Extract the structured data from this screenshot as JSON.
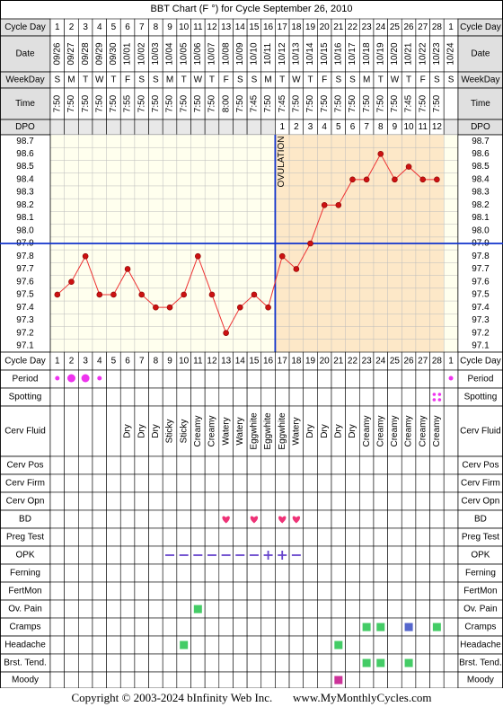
{
  "title": "BBT Chart (F °) for Cycle September 26, 2010",
  "row_labels": {
    "cycle_day": "Cycle Day",
    "date": "Date",
    "weekday": "WeekDay",
    "time": "Time",
    "dpo": "DPO",
    "period": "Period",
    "spotting": "Spotting",
    "cerv_fluid": "Cerv Fluid",
    "cerv_pos": "Cerv Pos",
    "cerv_firm": "Cerv Firm",
    "cerv_opn": "Cerv Opn",
    "bd": "BD",
    "preg_test": "Preg Test",
    "opk": "OPK",
    "ferning": "Ferning",
    "fertmon": "FertMon",
    "ov_pain": "Ov. Pain",
    "cramps": "Cramps",
    "headache": "Headache",
    "brst_tend": "Brst. Tend.",
    "moody": "Moody"
  },
  "columns": {
    "cycle_day": [
      "1",
      "2",
      "3",
      "4",
      "5",
      "6",
      "7",
      "8",
      "9",
      "10",
      "11",
      "12",
      "13",
      "14",
      "15",
      "16",
      "17",
      "18",
      "19",
      "20",
      "21",
      "22",
      "23",
      "24",
      "25",
      "26",
      "27",
      "28",
      "1"
    ],
    "dates": [
      "09/26",
      "09/27",
      "09/28",
      "09/29",
      "09/30",
      "10/01",
      "10/02",
      "10/03",
      "10/04",
      "10/05",
      "10/06",
      "10/07",
      "10/08",
      "10/09",
      "10/10",
      "10/11",
      "10/12",
      "10/13",
      "10/14",
      "10/15",
      "10/16",
      "10/17",
      "10/18",
      "10/19",
      "10/20",
      "10/21",
      "10/22",
      "10/23",
      "10/24"
    ],
    "weekdays": [
      "S",
      "M",
      "T",
      "W",
      "T",
      "F",
      "S",
      "S",
      "M",
      "T",
      "W",
      "T",
      "F",
      "S",
      "S",
      "M",
      "T",
      "W",
      "T",
      "F",
      "S",
      "S",
      "M",
      "T",
      "W",
      "T",
      "F",
      "S",
      "S"
    ],
    "times": [
      "7:50",
      "7:50",
      "7:50",
      "7:50",
      "7:50",
      "7:55",
      "7:50",
      "7:50",
      "7:50",
      "7:50",
      "7:50",
      "7:50",
      "8:00",
      "7:50",
      "7:45",
      "7:50",
      "7:45",
      "7:50",
      "7:50",
      "7:50",
      "7:50",
      "7:50",
      "7:50",
      "7:50",
      "7:50",
      "7:45",
      "7:50",
      "7:50",
      ""
    ],
    "dpo": [
      "",
      "",
      "",
      "",
      "",
      "",
      "",
      "",
      "",
      "",
      "",
      "",
      "",
      "",
      "",
      "",
      "1",
      "2",
      "3",
      "4",
      "5",
      "6",
      "7",
      "8",
      "9",
      "10",
      "11",
      "12",
      ""
    ],
    "cerv_fluid": [
      "",
      "",
      "",
      "",
      "",
      "Dry",
      "Dry",
      "Dry",
      "Sticky",
      "Sticky",
      "Creamy",
      "Creamy",
      "Watery",
      "Watery",
      "Eggwhite",
      "Eggwhite",
      "Eggwhite",
      "Watery",
      "Dry",
      "Dry",
      "Dry",
      "Dry",
      "Creamy",
      "Creamy",
      "Creamy",
      "Creamy",
      "Creamy",
      "Creamy",
      ""
    ]
  },
  "temp_axis_labels": [
    "98.7",
    "98.6",
    "98.5",
    "98.4",
    "98.3",
    "98.2",
    "98.1",
    "98.0",
    "97.9",
    "97.8",
    "97.7",
    "97.6",
    "97.5",
    "97.4",
    "97.3",
    "97.2",
    "97.1"
  ],
  "ovulation_label": "OVULATION",
  "chart_data": {
    "type": "line",
    "title": "BBT Chart (F °) for Cycle September 26, 2010",
    "x": [
      1,
      2,
      3,
      4,
      5,
      6,
      7,
      8,
      9,
      10,
      11,
      12,
      13,
      14,
      15,
      16,
      17,
      18,
      19,
      20,
      21,
      22,
      23,
      24,
      25,
      26,
      27,
      28
    ],
    "series": [
      {
        "values": [
          97.5,
          97.6,
          97.8,
          97.5,
          97.5,
          97.7,
          97.5,
          97.4,
          97.4,
          97.5,
          97.8,
          97.5,
          97.2,
          97.4,
          97.5,
          97.4,
          97.8,
          97.7,
          97.9,
          98.2,
          98.2,
          98.4,
          98.4,
          98.6,
          98.4,
          98.5,
          98.4,
          98.4
        ]
      }
    ],
    "ylim": [
      97.1,
      98.7
    ],
    "coverline": 97.9,
    "ovulation_day": 16,
    "grid": true
  },
  "markers": {
    "period": [
      {
        "col": 1,
        "size": "small"
      },
      {
        "col": 2,
        "size": "large"
      },
      {
        "col": 3,
        "size": "large"
      },
      {
        "col": 4,
        "size": "small"
      },
      {
        "col": 29,
        "size": "small"
      }
    ],
    "spotting": [
      28
    ],
    "bd": [
      13,
      15,
      17,
      18
    ],
    "opk_negative": [
      9,
      10,
      11,
      12,
      13,
      14,
      15,
      18
    ],
    "opk_positive": [
      16,
      17
    ],
    "ov_pain": [
      11
    ],
    "cramps": [
      {
        "col": 23,
        "color": "#44cc66"
      },
      {
        "col": 24,
        "color": "#44cc66"
      },
      {
        "col": 26,
        "color": "#5566cc"
      },
      {
        "col": 28,
        "color": "#44cc66"
      }
    ],
    "headache": [
      10,
      21
    ],
    "brst_tend": [
      23,
      24,
      26
    ],
    "moody": [
      21
    ]
  },
  "colors": {
    "header_bg": "#e0e0e0",
    "chart_bg_pre": "#ffffee",
    "chart_bg_post": "#fde8c8",
    "line": "#ee3333",
    "point": "#cc1111",
    "coverline": "#1133cc",
    "period": "#ee33ee",
    "spotting": "#ee33ee",
    "bd": "#ee3377",
    "opk": "#6644cc",
    "green_square": "#44cc66",
    "moody_square": "#cc3399"
  },
  "footer": {
    "copyright": "Copyright © 2003-2024 bInfinity Web Inc.",
    "site": "www.MyMonthlyCycles.com"
  }
}
